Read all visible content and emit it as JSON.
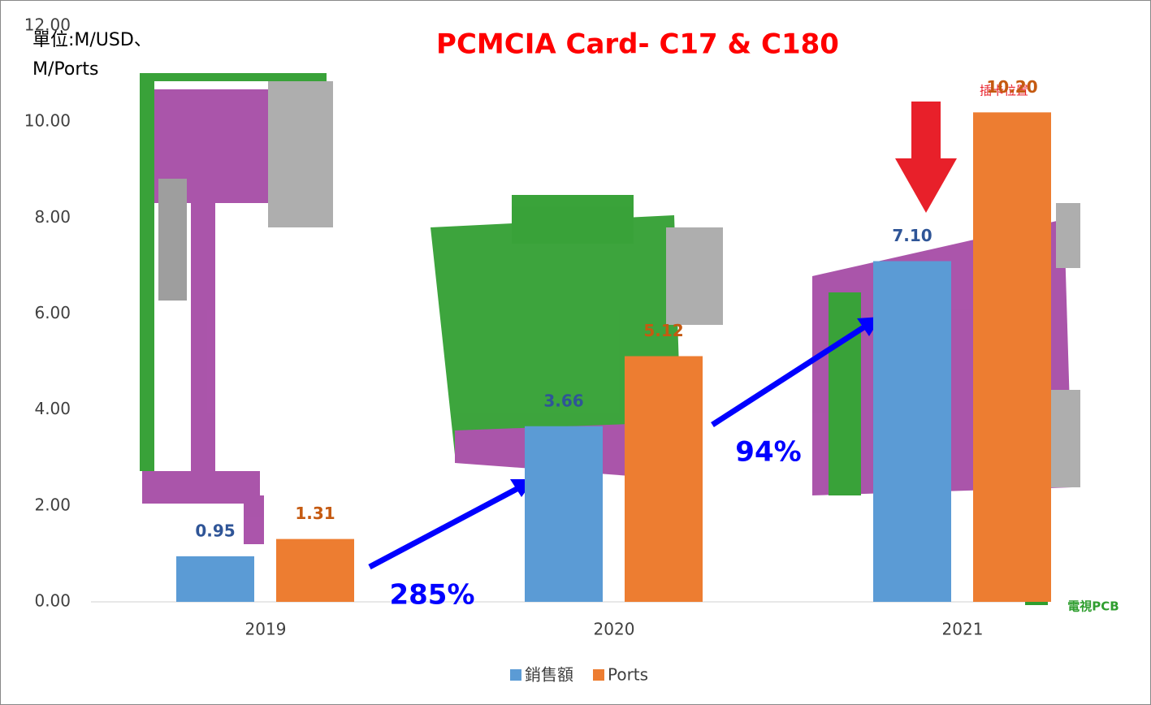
{
  "chart_data": {
    "type": "bar",
    "title": "PCMCIA Card-  C17 & C180",
    "unit_label": [
      "單位:M/USD、",
      "M/Ports"
    ],
    "categories": [
      "2019",
      "2020",
      "2021"
    ],
    "series": [
      {
        "name": "銷售額",
        "color": "#5b9bd5",
        "label_color": "#2f5597",
        "values": [
          0.95,
          3.66,
          7.1
        ],
        "value_labels": [
          "0.95",
          "3.66",
          "7.10"
        ]
      },
      {
        "name": "Ports",
        "color": "#ed7d31",
        "label_color": "#c55a11",
        "values": [
          1.31,
          5.12,
          10.2
        ],
        "value_labels": [
          "1.31",
          "5.12",
          "10.20"
        ]
      }
    ],
    "ylim": [
      0,
      12
    ],
    "yticks": [
      {
        "value": 0,
        "label": "0.00"
      },
      {
        "value": 2,
        "label": "2.00"
      },
      {
        "value": 4,
        "label": "4.00"
      },
      {
        "value": 6,
        "label": "6.00"
      },
      {
        "value": 8,
        "label": "8.00"
      },
      {
        "value": 10,
        "label": "10.00"
      },
      {
        "value": 12,
        "label": "12.00"
      }
    ],
    "grid": false,
    "legend": "bottom",
    "annotations": [
      "285%",
      "94%"
    ],
    "image_labels": [
      "插卡位置",
      "電視PCB"
    ]
  }
}
